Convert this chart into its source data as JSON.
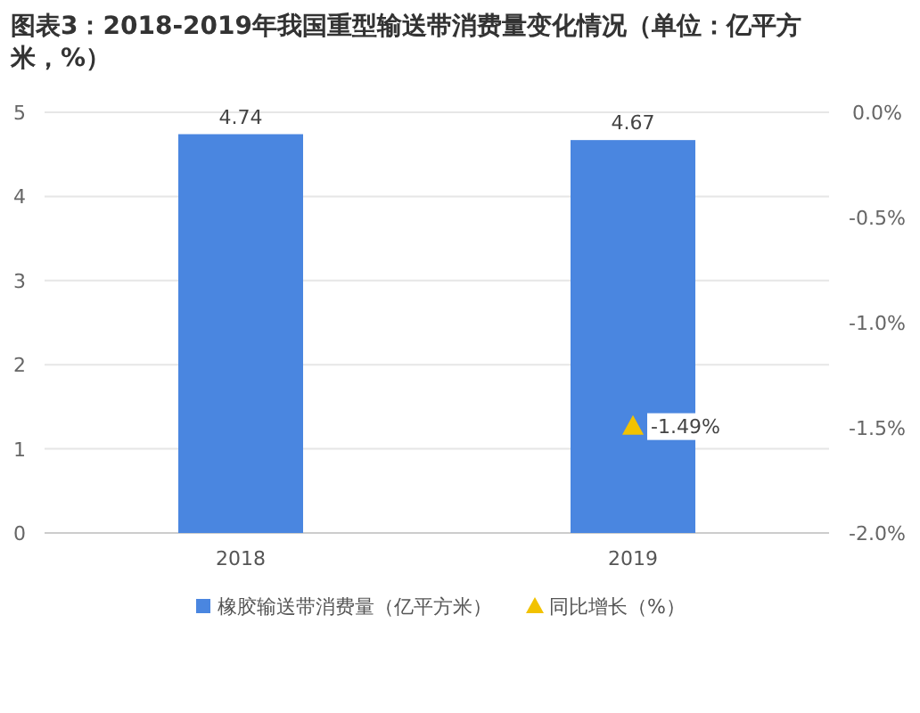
{
  "chart_data": {
    "type": "bar",
    "title": "图表3：2018-2019年我国重型输送带消费量变化情况（单位：亿平方米，%）",
    "categories": [
      "2018",
      "2019"
    ],
    "series": [
      {
        "name": "橡胶输送带消费量（亿平方米）",
        "color": "#4a86e0",
        "values": [
          4.74,
          4.67
        ],
        "value_labels": [
          "4.74",
          "4.67"
        ]
      },
      {
        "name": "同比增长（%）",
        "type": "scatter",
        "axis": "y2",
        "marker": "triangle",
        "color": "#f2c200",
        "values": [
          null,
          -1.49
        ],
        "value_labels": [
          null,
          "-1.49%"
        ]
      }
    ],
    "ylim": [
      0,
      5
    ],
    "yticks": [
      0,
      1,
      2,
      3,
      4,
      5
    ],
    "y2lim": [
      -2,
      0
    ],
    "y2ticks": [
      {
        "value": -2,
        "label": "-2.0%"
      },
      {
        "value": -1.5,
        "label": "-1.5%"
      },
      {
        "value": -1,
        "label": "-1.0%"
      },
      {
        "value": -0.5,
        "label": "-0.5%"
      },
      {
        "value": 0,
        "label": "0.0%"
      }
    ],
    "grid": "y",
    "legend": "bottom"
  }
}
